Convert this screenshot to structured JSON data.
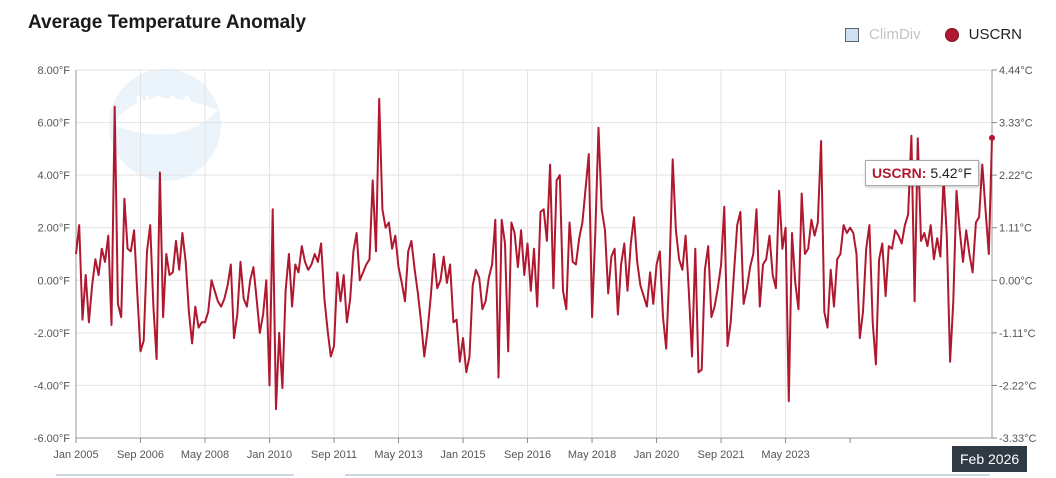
{
  "header": {
    "title": "Average Temperature Anomaly"
  },
  "legend": {
    "items": [
      {
        "label": "ClimDiv",
        "state": "hidden",
        "color": "#cfe0f0"
      },
      {
        "label": "USCRN",
        "state": "visible",
        "color": "#b0182f"
      }
    ]
  },
  "tooltip": {
    "series": "USCRN:",
    "value": "5.42°F"
  },
  "crosshair": {
    "label": "Feb 2026"
  },
  "logo": {
    "text": "NOAA"
  },
  "chart_data": {
    "type": "line",
    "title": "Average Temperature Anomaly",
    "y_left": {
      "min": -6,
      "max": 8,
      "ticks": [
        "8.00°F",
        "6.00°F",
        "4.00°F",
        "2.00°F",
        "0.00°F",
        "-2.00°F",
        "-4.00°F",
        "-6.00°F"
      ]
    },
    "y_right": {
      "ticks": [
        "4.44°C",
        "3.33°C",
        "2.22°C",
        "1.11°C",
        "0.00°C",
        "-1.11°C",
        "-2.22°C",
        "-3.33°C"
      ]
    },
    "x_ticks": [
      "Jan 2005",
      "Sep 2006",
      "May 2008",
      "Jan 2010",
      "Sep 2011",
      "May 2013",
      "Jan 2015",
      "Sep 2016",
      "May 2018",
      "Jan 2020",
      "Sep 2021",
      "May 2023"
    ],
    "x_range": [
      "2005-01",
      "2026-02"
    ],
    "grid": true,
    "series": [
      {
        "name": "USCRN",
        "color": "#b0182f",
        "start": "2005-01",
        "interval": "month",
        "values": [
          1.0,
          2.1,
          -1.5,
          0.2,
          -1.6,
          -0.2,
          0.8,
          0.2,
          1.2,
          0.7,
          1.7,
          -1.7,
          6.6,
          -0.9,
          -1.4,
          3.1,
          1.2,
          1.1,
          1.9,
          -0.5,
          -2.7,
          -2.3,
          1.1,
          2.1,
          -1.0,
          -3.0,
          4.1,
          -1.4,
          1.0,
          0.2,
          0.3,
          1.5,
          0.4,
          1.8,
          0.7,
          -1.2,
          -2.4,
          -1.0,
          -1.8,
          -1.6,
          -1.6,
          -1.2,
          0.0,
          -0.4,
          -0.8,
          -1.0,
          -0.7,
          -0.2,
          0.6,
          -2.2,
          -1.3,
          0.7,
          -0.7,
          -1.0,
          0.0,
          0.5,
          -0.7,
          -2.0,
          -1.3,
          0.0,
          -4.0,
          2.7,
          -4.9,
          -2.0,
          -4.1,
          -0.4,
          1.0,
          -1.0,
          0.6,
          0.3,
          1.3,
          0.7,
          0.4,
          0.6,
          1.0,
          0.7,
          1.4,
          -0.7,
          -1.9,
          -2.9,
          -2.5,
          0.3,
          -0.8,
          0.2,
          -1.6,
          -0.7,
          1.1,
          1.8,
          0.0,
          0.3,
          0.6,
          0.8,
          3.8,
          1.1,
          6.9,
          2.7,
          2.0,
          2.2,
          1.2,
          1.7,
          0.5,
          -0.1,
          -0.8,
          1.1,
          1.5,
          0.4,
          -0.5,
          -1.6,
          -2.9,
          -1.9,
          -0.6,
          1.0,
          -0.3,
          0.0,
          0.9,
          -0.1,
          0.6,
          -1.6,
          -1.5,
          -3.1,
          -2.2,
          -3.5,
          -2.9,
          -0.2,
          0.4,
          0.1,
          -1.1,
          -0.8,
          0.1,
          0.6,
          2.3,
          -3.7,
          2.3,
          1.4,
          -2.7,
          2.2,
          1.8,
          0.5,
          1.9,
          0.2,
          1.4,
          -0.4,
          1.2,
          -1.0,
          2.6,
          2.7,
          1.5,
          4.4,
          -0.3,
          3.8,
          4.0,
          -0.4,
          -1.1,
          2.2,
          0.7,
          0.6,
          1.6,
          2.2,
          3.5,
          4.8,
          -1.4,
          1.8,
          5.8,
          2.7,
          1.9,
          -0.5,
          0.9,
          1.2,
          -1.3,
          0.6,
          1.4,
          -0.4,
          1.4,
          2.4,
          0.7,
          -0.2,
          -0.6,
          -1.0,
          0.3,
          -0.9,
          0.6,
          1.1,
          -1.4,
          -2.6,
          0.4,
          4.6,
          1.9,
          0.8,
          0.4,
          1.7,
          -0.4,
          -2.9,
          1.2,
          -3.5,
          -3.4,
          0.4,
          1.3,
          -1.4,
          -1.0,
          -0.3,
          0.6,
          2.8,
          -2.5,
          -1.6,
          0.3,
          2.1,
          2.6,
          -0.9,
          -0.3,
          0.5,
          1.0,
          2.7,
          -1.0,
          0.6,
          0.8,
          1.7,
          0.2,
          -0.3,
          3.4,
          1.2,
          2.0,
          -4.6,
          1.8,
          -0.1,
          -1.1,
          3.3,
          1.0,
          1.2,
          2.3,
          1.7,
          2.2,
          5.3,
          -1.2,
          -1.8,
          0.4,
          -1.0,
          0.8,
          1.0,
          2.1,
          1.8,
          2.0,
          1.8,
          1.0,
          -2.2,
          -1.2,
          1.2,
          2.1,
          -1.6,
          -3.2,
          0.8,
          1.4,
          -0.6,
          1.3,
          1.2,
          1.9,
          1.7,
          1.4,
          2.1,
          2.5,
          5.5,
          -0.8,
          5.4,
          1.5,
          1.8,
          1.3,
          2.1,
          0.8,
          1.6,
          0.9,
          3.9,
          1.7,
          -3.1,
          -0.8,
          3.4,
          1.9,
          0.7,
          1.9,
          1.0,
          0.3,
          2.2,
          2.4,
          4.4,
          2.7,
          1.0,
          5.42
        ]
      }
    ]
  }
}
